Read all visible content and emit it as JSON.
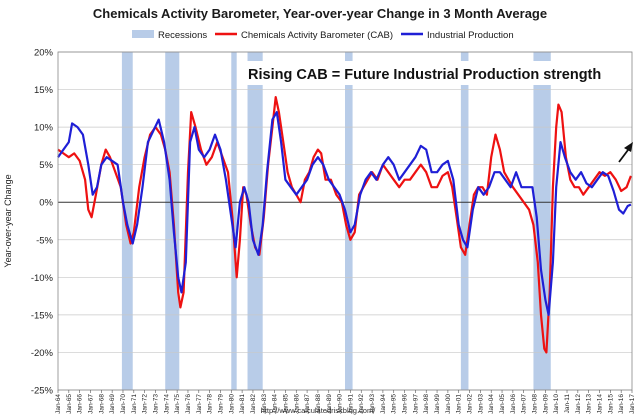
{
  "chart_data": {
    "type": "line",
    "title": "Chemicals Activity Barometer, Year-over-year Change in 3 Month Average",
    "ylabel": "Year-over-year Change",
    "xlabel": "",
    "ylim": [
      -25,
      20
    ],
    "yticks": [
      "20%",
      "15%",
      "10%",
      "5%",
      "0%",
      "-5%",
      "-10%",
      "-15%",
      "-20%",
      "-25%"
    ],
    "x_range": [
      1964.0,
      2017.0
    ],
    "xtick_labels": [
      "Jan-64",
      "Jan-65",
      "Jan-66",
      "Jan-67",
      "Jan-68",
      "Jan-69",
      "Jan-70",
      "Jan-71",
      "Jan-72",
      "Jan-73",
      "Jan-74",
      "Jan-75",
      "Jan-76",
      "Jan-77",
      "Jan-78",
      "Jan-79",
      "Jan-80",
      "Jan-81",
      "Jan-82",
      "Jan-83",
      "Jan-84",
      "Jan-85",
      "Jan-86",
      "Jan-87",
      "Jan-88",
      "Jan-89",
      "Jan-90",
      "Jan-91",
      "Jan-92",
      "Jan-93",
      "Jan-94",
      "Jan-95",
      "Jan-96",
      "Jan-97",
      "Jan-98",
      "Jan-99",
      "Jan-00",
      "Jan-01",
      "Jan-02",
      "Jan-03",
      "Jan-04",
      "Jan-05",
      "Jan-06",
      "Jan-07",
      "Jan-08",
      "Jan-09",
      "Jan-10",
      "Jan-11",
      "Jan-12",
      "Jan-13",
      "Jan-14",
      "Jan-15",
      "Jan-16",
      "Jan-17"
    ],
    "grid": "horizontal",
    "legend": {
      "placement": "top",
      "entries": [
        {
          "label": "Recessions",
          "color": "#b8cce8"
        },
        {
          "label": "Chemicals Activity Barometer (CAB)",
          "color": "#ee1111"
        },
        {
          "label": "Industrial Production",
          "color": "#1f1fd6"
        }
      ]
    },
    "recessions": [
      [
        1969.9,
        1970.9
      ],
      [
        1973.9,
        1975.2
      ],
      [
        1980.0,
        1980.5
      ],
      [
        1981.5,
        1982.9
      ],
      [
        1990.5,
        1991.2
      ],
      [
        2001.2,
        2001.9
      ],
      [
        2007.9,
        2009.5
      ]
    ],
    "series": [
      {
        "name": "Chemicals Activity Barometer (CAB)",
        "color": "#ee1111",
        "points": [
          [
            1964.0,
            7
          ],
          [
            1964.5,
            6.5
          ],
          [
            1965.0,
            6
          ],
          [
            1965.5,
            6.5
          ],
          [
            1966.0,
            5.5
          ],
          [
            1966.5,
            3
          ],
          [
            1966.8,
            -1
          ],
          [
            1967.1,
            -2
          ],
          [
            1967.5,
            1
          ],
          [
            1968.0,
            5
          ],
          [
            1968.4,
            7
          ],
          [
            1968.8,
            6
          ],
          [
            1969.3,
            4
          ],
          [
            1969.8,
            2
          ],
          [
            1970.3,
            -3
          ],
          [
            1970.7,
            -5.5
          ],
          [
            1971.0,
            -4
          ],
          [
            1971.5,
            2
          ],
          [
            1972.0,
            6
          ],
          [
            1972.5,
            9
          ],
          [
            1973.0,
            10
          ],
          [
            1973.5,
            9
          ],
          [
            1973.9,
            7
          ],
          [
            1974.3,
            4
          ],
          [
            1974.7,
            -3
          ],
          [
            1975.1,
            -12
          ],
          [
            1975.3,
            -14
          ],
          [
            1975.6,
            -12
          ],
          [
            1976.0,
            4
          ],
          [
            1976.3,
            12
          ],
          [
            1976.7,
            10
          ],
          [
            1977.2,
            7
          ],
          [
            1977.7,
            5
          ],
          [
            1978.2,
            6
          ],
          [
            1978.7,
            8
          ],
          [
            1979.2,
            6
          ],
          [
            1979.7,
            4
          ],
          [
            1980.1,
            -2
          ],
          [
            1980.5,
            -10
          ],
          [
            1980.8,
            -5
          ],
          [
            1981.1,
            2
          ],
          [
            1981.4,
            1
          ],
          [
            1981.8,
            -3
          ],
          [
            1982.2,
            -6
          ],
          [
            1982.6,
            -7
          ],
          [
            1983.0,
            -2
          ],
          [
            1983.4,
            5
          ],
          [
            1983.8,
            10
          ],
          [
            1984.1,
            14
          ],
          [
            1984.4,
            12
          ],
          [
            1984.8,
            8
          ],
          [
            1985.2,
            4
          ],
          [
            1985.6,
            2
          ],
          [
            1986.0,
            1
          ],
          [
            1986.4,
            0
          ],
          [
            1986.8,
            3
          ],
          [
            1987.2,
            4
          ],
          [
            1987.6,
            6
          ],
          [
            1988.0,
            7
          ],
          [
            1988.3,
            6.5
          ],
          [
            1988.7,
            3
          ],
          [
            1989.2,
            3
          ],
          [
            1989.7,
            1
          ],
          [
            1990.2,
            0
          ],
          [
            1990.6,
            -3
          ],
          [
            1991.0,
            -5
          ],
          [
            1991.4,
            -4
          ],
          [
            1991.8,
            1
          ],
          [
            1992.2,
            2
          ],
          [
            1992.6,
            3
          ],
          [
            1993.0,
            4
          ],
          [
            1993.5,
            3
          ],
          [
            1994.0,
            5
          ],
          [
            1994.5,
            4
          ],
          [
            1995.0,
            3
          ],
          [
            1995.5,
            2
          ],
          [
            1996.0,
            3
          ],
          [
            1996.5,
            3
          ],
          [
            1997.0,
            4
          ],
          [
            1997.5,
            5
          ],
          [
            1998.0,
            4
          ],
          [
            1998.5,
            2
          ],
          [
            1999.0,
            2
          ],
          [
            1999.5,
            3.5
          ],
          [
            2000.0,
            4
          ],
          [
            2000.4,
            2
          ],
          [
            2000.8,
            -2
          ],
          [
            2001.2,
            -6
          ],
          [
            2001.6,
            -7
          ],
          [
            2002.0,
            -3
          ],
          [
            2002.4,
            1
          ],
          [
            2002.8,
            2
          ],
          [
            2003.2,
            2
          ],
          [
            2003.6,
            1
          ],
          [
            2004.0,
            6
          ],
          [
            2004.4,
            9
          ],
          [
            2004.8,
            7
          ],
          [
            2005.2,
            4
          ],
          [
            2005.6,
            3
          ],
          [
            2006.0,
            2
          ],
          [
            2006.5,
            1
          ],
          [
            2007.0,
            0
          ],
          [
            2007.5,
            -1
          ],
          [
            2007.9,
            -3
          ],
          [
            2008.3,
            -8
          ],
          [
            2008.6,
            -15
          ],
          [
            2008.9,
            -19.5
          ],
          [
            2009.1,
            -20
          ],
          [
            2009.4,
            -12
          ],
          [
            2009.7,
            2
          ],
          [
            2010.0,
            10
          ],
          [
            2010.2,
            13
          ],
          [
            2010.5,
            12
          ],
          [
            2010.9,
            6
          ],
          [
            2011.3,
            3
          ],
          [
            2011.7,
            2
          ],
          [
            2012.1,
            2
          ],
          [
            2012.5,
            1
          ],
          [
            2013.0,
            2
          ],
          [
            2013.5,
            3
          ],
          [
            2014.0,
            4
          ],
          [
            2014.5,
            3.5
          ],
          [
            2015.0,
            4
          ],
          [
            2015.5,
            3
          ],
          [
            2016.0,
            1.5
          ],
          [
            2016.5,
            2
          ],
          [
            2016.9,
            3.5
          ]
        ]
      },
      {
        "name": "Industrial Production",
        "color": "#1f1fd6",
        "points": [
          [
            1964.0,
            6
          ],
          [
            1964.5,
            7
          ],
          [
            1965.0,
            8
          ],
          [
            1965.3,
            10.5
          ],
          [
            1965.8,
            10
          ],
          [
            1966.3,
            9
          ],
          [
            1966.8,
            5
          ],
          [
            1967.2,
            1
          ],
          [
            1967.6,
            2
          ],
          [
            1968.0,
            5
          ],
          [
            1968.5,
            6
          ],
          [
            1969.0,
            5.5
          ],
          [
            1969.5,
            5
          ],
          [
            1970.0,
            0
          ],
          [
            1970.4,
            -3
          ],
          [
            1970.9,
            -5.5
          ],
          [
            1971.3,
            -3
          ],
          [
            1971.8,
            2
          ],
          [
            1972.3,
            8
          ],
          [
            1972.8,
            9.5
          ],
          [
            1973.3,
            11
          ],
          [
            1973.8,
            8
          ],
          [
            1974.3,
            3
          ],
          [
            1974.7,
            -4
          ],
          [
            1975.1,
            -10
          ],
          [
            1975.4,
            -12
          ],
          [
            1975.8,
            -8
          ],
          [
            1976.2,
            8
          ],
          [
            1976.6,
            10
          ],
          [
            1977.0,
            7
          ],
          [
            1977.5,
            6
          ],
          [
            1978.0,
            7
          ],
          [
            1978.5,
            9
          ],
          [
            1979.0,
            7
          ],
          [
            1979.5,
            3
          ],
          [
            1980.0,
            -2
          ],
          [
            1980.4,
            -6
          ],
          [
            1980.8,
            0
          ],
          [
            1981.2,
            2
          ],
          [
            1981.6,
            0
          ],
          [
            1982.0,
            -5
          ],
          [
            1982.5,
            -7
          ],
          [
            1982.9,
            -3
          ],
          [
            1983.3,
            4
          ],
          [
            1983.8,
            11
          ],
          [
            1984.2,
            12
          ],
          [
            1984.6,
            8
          ],
          [
            1985.0,
            3
          ],
          [
            1985.5,
            2
          ],
          [
            1986.0,
            1
          ],
          [
            1986.5,
            2
          ],
          [
            1987.0,
            3
          ],
          [
            1987.5,
            5
          ],
          [
            1988.0,
            6
          ],
          [
            1988.5,
            5
          ],
          [
            1989.0,
            3
          ],
          [
            1989.5,
            2
          ],
          [
            1990.0,
            1
          ],
          [
            1990.5,
            -1
          ],
          [
            1991.0,
            -4
          ],
          [
            1991.4,
            -3
          ],
          [
            1991.9,
            1
          ],
          [
            1992.4,
            3
          ],
          [
            1992.9,
            4
          ],
          [
            1993.4,
            3
          ],
          [
            1994.0,
            5
          ],
          [
            1994.5,
            6
          ],
          [
            1995.0,
            5
          ],
          [
            1995.5,
            3
          ],
          [
            1996.0,
            4
          ],
          [
            1996.5,
            5
          ],
          [
            1997.0,
            6
          ],
          [
            1997.5,
            7.5
          ],
          [
            1998.0,
            7
          ],
          [
            1998.5,
            4
          ],
          [
            1999.0,
            4
          ],
          [
            1999.5,
            5
          ],
          [
            2000.0,
            5.5
          ],
          [
            2000.5,
            3
          ],
          [
            2001.0,
            -3
          ],
          [
            2001.4,
            -5
          ],
          [
            2001.8,
            -6
          ],
          [
            2002.3,
            -1
          ],
          [
            2002.8,
            2
          ],
          [
            2003.3,
            1
          ],
          [
            2003.8,
            2
          ],
          [
            2004.3,
            4
          ],
          [
            2004.8,
            4
          ],
          [
            2005.3,
            3
          ],
          [
            2005.8,
            2
          ],
          [
            2006.3,
            4
          ],
          [
            2006.8,
            2
          ],
          [
            2007.3,
            2
          ],
          [
            2007.8,
            2
          ],
          [
            2008.2,
            -2
          ],
          [
            2008.6,
            -9
          ],
          [
            2009.0,
            -13
          ],
          [
            2009.3,
            -15
          ],
          [
            2009.7,
            -8
          ],
          [
            2010.0,
            2
          ],
          [
            2010.4,
            8
          ],
          [
            2010.8,
            6
          ],
          [
            2011.3,
            4
          ],
          [
            2011.8,
            3
          ],
          [
            2012.3,
            4
          ],
          [
            2012.8,
            2.5
          ],
          [
            2013.3,
            2
          ],
          [
            2013.8,
            3
          ],
          [
            2014.3,
            4
          ],
          [
            2014.8,
            3.5
          ],
          [
            2015.3,
            1.5
          ],
          [
            2015.8,
            -1
          ],
          [
            2016.2,
            -1.5
          ],
          [
            2016.6,
            -0.5
          ],
          [
            2016.9,
            -0.3
          ]
        ]
      }
    ],
    "annotations": [
      {
        "text": "Rising CAB = Future Industrial Production strength"
      }
    ],
    "source": "http://www.calculatedriskblog.com/"
  }
}
